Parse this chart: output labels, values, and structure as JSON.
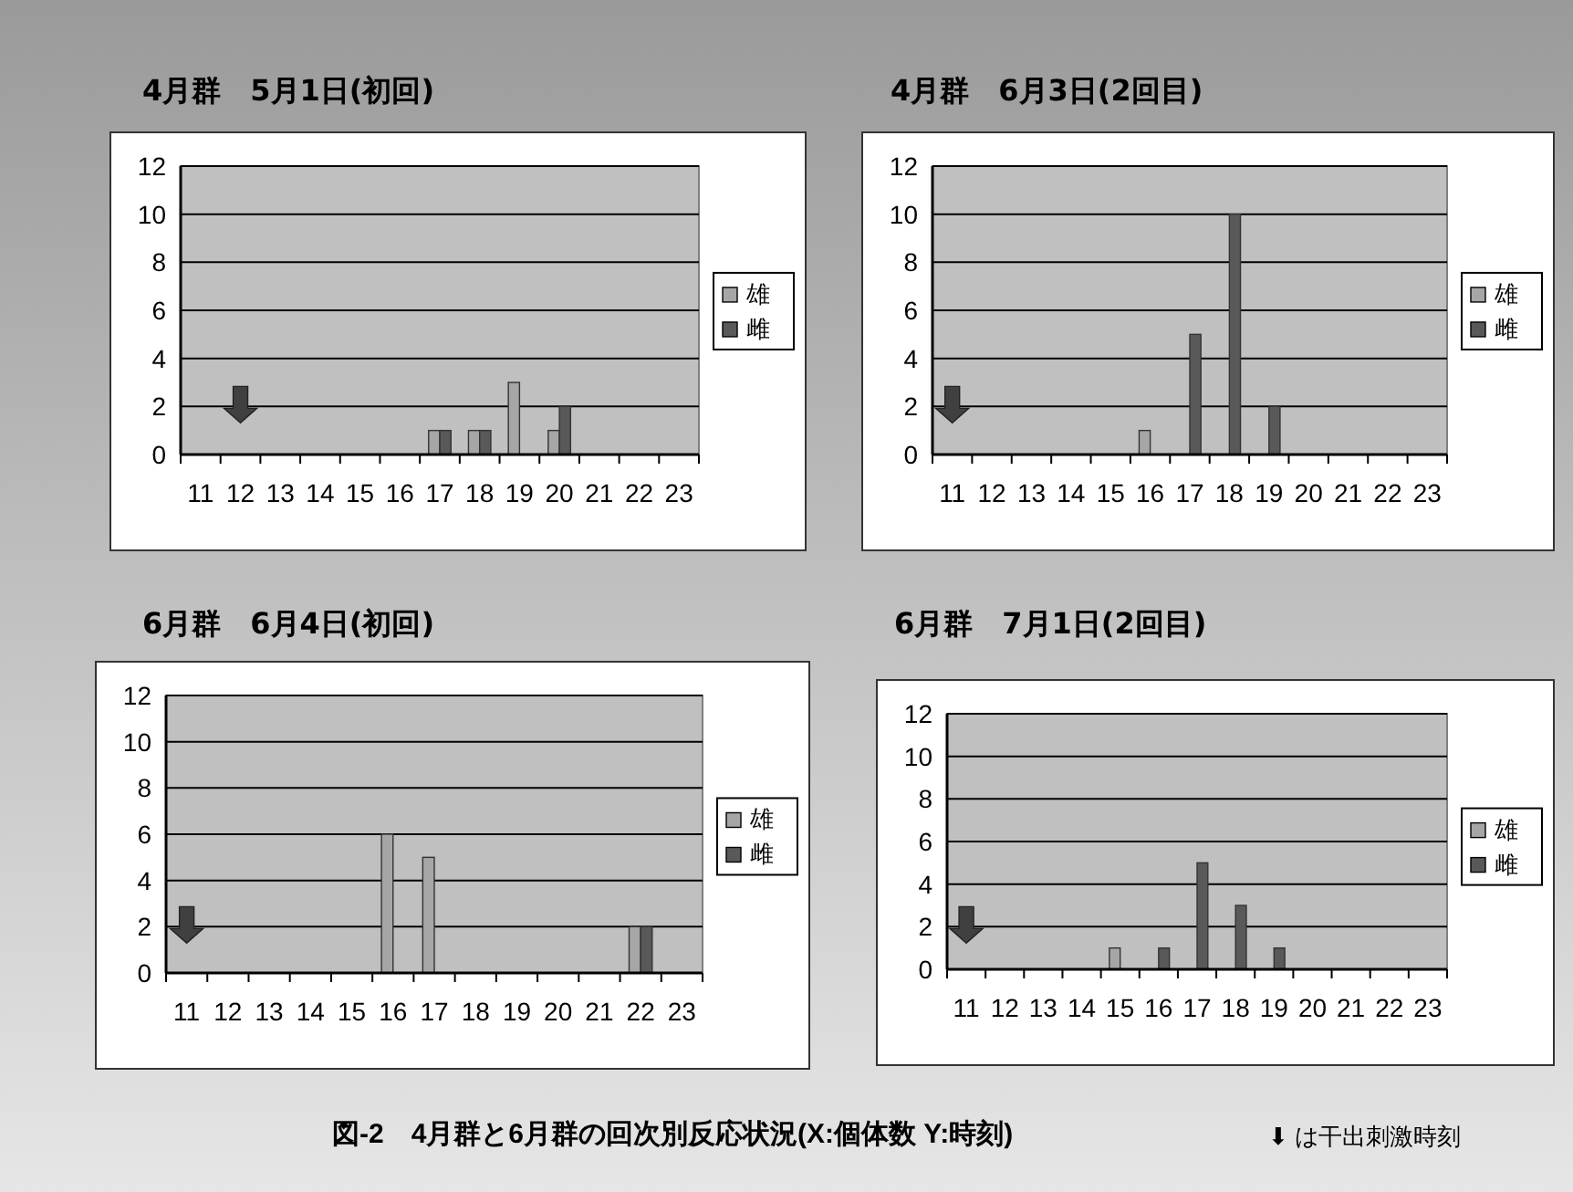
{
  "chart_data": [
    {
      "type": "bar",
      "title": "4月群　5月1日(初回)",
      "categories": [
        "11",
        "12",
        "13",
        "14",
        "15",
        "16",
        "17",
        "18",
        "19",
        "20",
        "21",
        "22",
        "23"
      ],
      "series": [
        {
          "name": "雄",
          "color": "#a6a6a6",
          "values": [
            0,
            0,
            0,
            0,
            0,
            0,
            1,
            1,
            3,
            1,
            0,
            0,
            0
          ]
        },
        {
          "name": "雌",
          "color": "#595959",
          "values": [
            0,
            0,
            0,
            0,
            0,
            0,
            1,
            1,
            0,
            2,
            0,
            0,
            0
          ]
        },
        {
          "type": "scatter",
          "color": "#404040",
          "x": [
            "12"
          ],
          "values": [
            2
          ]
        }
      ],
      "ylim": [
        0,
        12
      ],
      "yticks": [
        0,
        2,
        4,
        6,
        8,
        10,
        12
      ],
      "grid": "y",
      "legend": "right"
    },
    {
      "type": "bar",
      "title": "4月群　6月3日(2回目)",
      "categories": [
        "11",
        "12",
        "13",
        "14",
        "15",
        "16",
        "17",
        "18",
        "19",
        "20",
        "21",
        "22",
        "23"
      ],
      "series": [
        {
          "name": "雄",
          "color": "#a6a6a6",
          "values": [
            0,
            0,
            0,
            0,
            0,
            1,
            0,
            0,
            0,
            0,
            0,
            0,
            0
          ]
        },
        {
          "name": "雌",
          "color": "#595959",
          "values": [
            0,
            0,
            0,
            0,
            0,
            0,
            5,
            10,
            2,
            0,
            0,
            0,
            0
          ]
        },
        {
          "type": "scatter",
          "color": "#404040",
          "x": [
            "11"
          ],
          "values": [
            2
          ]
        }
      ],
      "ylim": [
        0,
        12
      ],
      "yticks": [
        0,
        2,
        4,
        6,
        8,
        10,
        12
      ],
      "grid": "y",
      "legend": "right"
    },
    {
      "type": "bar",
      "title": "6月群　6月4日(初回)",
      "categories": [
        "11",
        "12",
        "13",
        "14",
        "15",
        "16",
        "17",
        "18",
        "19",
        "20",
        "21",
        "22",
        "23"
      ],
      "series": [
        {
          "name": "雄",
          "color": "#a6a6a6",
          "values": [
            0,
            0,
            0,
            0,
            0,
            6,
            5,
            0,
            0,
            0,
            0,
            2,
            0
          ]
        },
        {
          "name": "雌",
          "color": "#595959",
          "values": [
            0,
            0,
            0,
            0,
            0,
            0,
            0,
            0,
            0,
            0,
            0,
            2,
            0
          ]
        },
        {
          "type": "scatter",
          "color": "#404040",
          "x": [
            "11"
          ],
          "values": [
            2
          ]
        }
      ],
      "ylim": [
        0,
        12
      ],
      "yticks": [
        0,
        2,
        4,
        6,
        8,
        10,
        12
      ],
      "grid": "y",
      "legend": "right"
    },
    {
      "type": "bar",
      "title": "6月群　7月1日(2回目)",
      "categories": [
        "11",
        "12",
        "13",
        "14",
        "15",
        "16",
        "17",
        "18",
        "19",
        "20",
        "21",
        "22",
        "23"
      ],
      "series": [
        {
          "name": "雄",
          "color": "#a6a6a6",
          "values": [
            0,
            0,
            0,
            0,
            1,
            0,
            0,
            0,
            0,
            0,
            0,
            0,
            0
          ]
        },
        {
          "name": "雌",
          "color": "#595959",
          "values": [
            0,
            0,
            0,
            0,
            0,
            1,
            5,
            3,
            1,
            0,
            0,
            0,
            0
          ]
        },
        {
          "type": "scatter",
          "color": "#404040",
          "x": [
            "11"
          ],
          "values": [
            2
          ]
        }
      ],
      "ylim": [
        0,
        12
      ],
      "yticks": [
        0,
        2,
        4,
        6,
        8,
        10,
        12
      ],
      "grid": "y",
      "legend": "right",
      "annotations": [
        "図-2　4月群と6月群の回次別反応状況(X:個体数 Y:時刻)",
        "⬇ は干出刺激時刻"
      ]
    }
  ]
}
